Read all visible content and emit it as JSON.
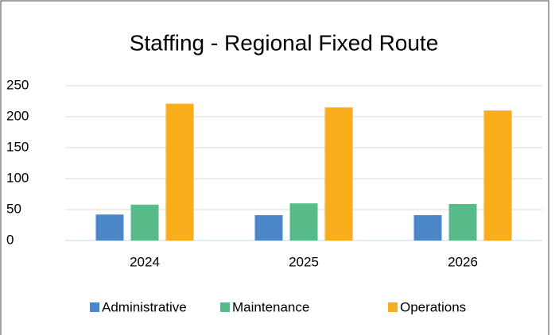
{
  "chart_data": {
    "type": "bar",
    "title": "Staffing - Regional Fixed Route",
    "categories": [
      "2024",
      "2025",
      "2026"
    ],
    "series": [
      {
        "name": "Administrative",
        "color": "#4a86c8",
        "values": [
          42,
          41,
          41
        ]
      },
      {
        "name": "Maintenance",
        "color": "#57bb8a",
        "values": [
          58,
          60,
          59
        ]
      },
      {
        "name": "Operations",
        "color": "#fbae1c",
        "values": [
          221,
          215,
          210
        ]
      }
    ],
    "ylim": [
      0,
      250
    ],
    "yticks": [
      0,
      50,
      100,
      150,
      200,
      250
    ],
    "grid": true,
    "legend": "bottom"
  }
}
